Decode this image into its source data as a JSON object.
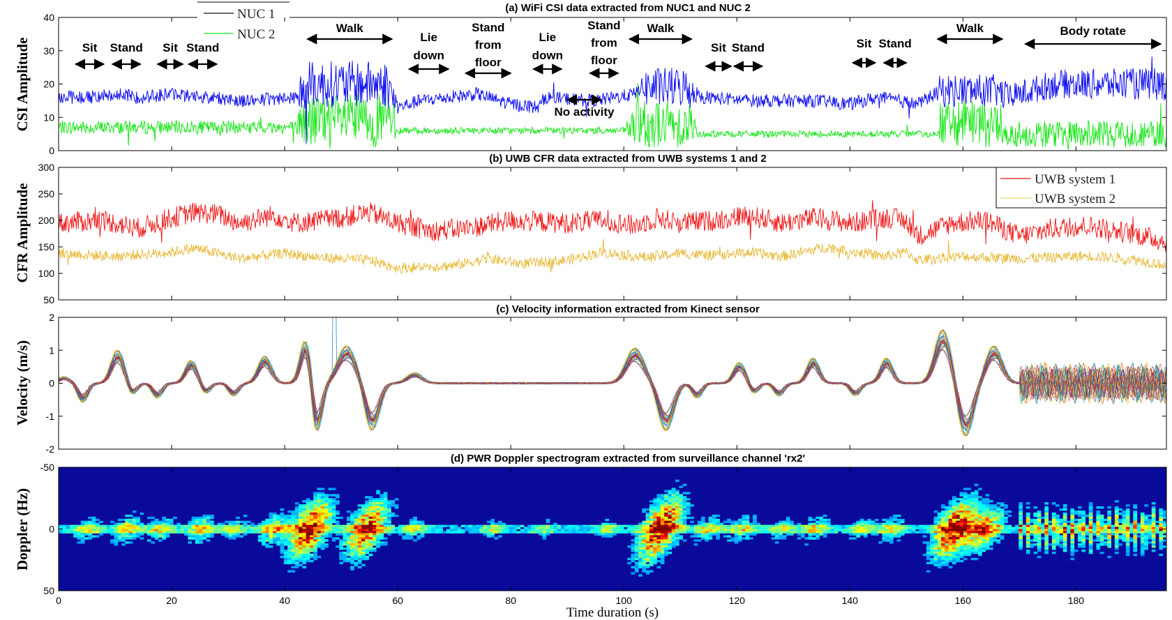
{
  "xaxis": {
    "label": "Time duration (s)",
    "range": [
      0,
      196
    ],
    "ticks": [
      0,
      20,
      40,
      60,
      80,
      100,
      120,
      140,
      160,
      180
    ]
  },
  "colors": {
    "nuc1": "#1010ee",
    "nuc2": "#19e619",
    "uwb1": "#ee1111",
    "uwb2": "#e6b62e",
    "arrow": "#000000"
  },
  "chart_data": [
    {
      "type": "line",
      "panel": "a",
      "title": "(a) WiFi CSI data extracted from NUC1 and NUC 2",
      "ylabel": "CSI Amplitude",
      "ylim": [
        0,
        40
      ],
      "yticks": [
        0,
        10,
        20,
        30,
        40
      ],
      "legend": {
        "position": "top-left",
        "entries": [
          "NUC 1",
          "NUC 2"
        ]
      },
      "series": [
        {
          "name": "NUC 1",
          "color_key": "nuc1",
          "base": [
            [
              0,
              16
            ],
            [
              5,
              16
            ],
            [
              10,
              17
            ],
            [
              14,
              16
            ],
            [
              20,
              17
            ],
            [
              26,
              16
            ],
            [
              33,
              15
            ],
            [
              42,
              16
            ],
            [
              44,
              20
            ],
            [
              58,
              20
            ],
            [
              60,
              13
            ],
            [
              64,
              15
            ],
            [
              69,
              16
            ],
            [
              74,
              17
            ],
            [
              80,
              14
            ],
            [
              85,
              13
            ],
            [
              86,
              16
            ],
            [
              95,
              15
            ],
            [
              102,
              17
            ],
            [
              103,
              19
            ],
            [
              111,
              19
            ],
            [
              114,
              16
            ],
            [
              123,
              15
            ],
            [
              134,
              15
            ],
            [
              140,
              14
            ],
            [
              145,
              16
            ],
            [
              152,
              14
            ],
            [
              156,
              18
            ],
            [
              166,
              18
            ],
            [
              168,
              16
            ],
            [
              176,
              20
            ],
            [
              196,
              20
            ]
          ],
          "noise": [
            [
              0,
              2
            ],
            [
              42,
              2
            ],
            [
              43,
              7
            ],
            [
              59,
              7
            ],
            [
              60,
              2
            ],
            [
              103,
              2
            ],
            [
              104,
              6
            ],
            [
              112,
              6
            ],
            [
              113,
              2
            ],
            [
              155,
              2
            ],
            [
              156,
              5
            ],
            [
              167,
              5
            ],
            [
              168,
              4
            ],
            [
              196,
              5
            ]
          ]
        },
        {
          "name": "NUC 2",
          "color_key": "nuc2",
          "base": [
            [
              0,
              7
            ],
            [
              42,
              7
            ],
            [
              43,
              9
            ],
            [
              59,
              9
            ],
            [
              60,
              6
            ],
            [
              100,
              6
            ],
            [
              103,
              8
            ],
            [
              112,
              8
            ],
            [
              113,
              5
            ],
            [
              155,
              5
            ],
            [
              156,
              8
            ],
            [
              167,
              8
            ],
            [
              168,
              5
            ],
            [
              196,
              5
            ]
          ],
          "noise": [
            [
              0,
              2
            ],
            [
              42,
              2
            ],
            [
              43,
              8
            ],
            [
              59,
              8
            ],
            [
              60,
              1
            ],
            [
              100,
              1
            ],
            [
              102,
              7
            ],
            [
              112,
              7
            ],
            [
              113,
              1
            ],
            [
              155,
              1
            ],
            [
              156,
              7
            ],
            [
              167,
              7
            ],
            [
              168,
              4
            ],
            [
              196,
              4
            ]
          ]
        }
      ],
      "annotations": [
        {
          "text": "Sit",
          "x0": 3,
          "x1": 8
        },
        {
          "text": "Stand",
          "x0": 9.5,
          "x1": 14.5
        },
        {
          "text": "Sit",
          "x0": 17.5,
          "x1": 22
        },
        {
          "text": "Stand",
          "x0": 23,
          "x1": 28
        },
        {
          "text": "Walk",
          "x0": 44,
          "x1": 59
        },
        {
          "text": "Lie down",
          "x0": 62,
          "x1": 69
        },
        {
          "text": "Stand from floor",
          "x0": 72,
          "x1": 80
        },
        {
          "text": "Lie down",
          "x0": 84,
          "x1": 89
        },
        {
          "text": "Stand from floor",
          "x0": 94,
          "x1": 99
        },
        {
          "text": "No activity",
          "x0": 90,
          "x1": 96
        },
        {
          "text": "Walk",
          "x0": 101,
          "x1": 112
        },
        {
          "text": "Sit",
          "x0": 114.5,
          "x1": 119
        },
        {
          "text": "Stand",
          "x0": 119.5,
          "x1": 124.5
        },
        {
          "text": "Sit",
          "x0": 140.5,
          "x1": 144.5
        },
        {
          "text": "Stand",
          "x0": 146,
          "x1": 150
        },
        {
          "text": "Walk",
          "x0": 155.5,
          "x1": 167
        },
        {
          "text": "Body rotate",
          "x0": 171,
          "x1": 195
        }
      ]
    },
    {
      "type": "line",
      "panel": "b",
      "title": "(b) UWB CFR data extracted from UWB systems 1 and 2",
      "ylabel": "CFR Amplitude",
      "ylim": [
        50,
        300
      ],
      "yticks": [
        50,
        100,
        150,
        200,
        250,
        300
      ],
      "legend": {
        "position": "top-right",
        "entries": [
          "UWB system 1",
          "UWB system 2"
        ]
      },
      "series": [
        {
          "name": "UWB system 1",
          "color_key": "uwb1",
          "base": [
            [
              0,
              195
            ],
            [
              8,
              200
            ],
            [
              14,
              185
            ],
            [
              20,
              205
            ],
            [
              24,
              215
            ],
            [
              28,
              212
            ],
            [
              32,
              195
            ],
            [
              38,
              210
            ],
            [
              42,
              195
            ],
            [
              50,
              205
            ],
            [
              55,
              215
            ],
            [
              60,
              195
            ],
            [
              66,
              180
            ],
            [
              72,
              185
            ],
            [
              80,
              200
            ],
            [
              90,
              195
            ],
            [
              96,
              200
            ],
            [
              102,
              190
            ],
            [
              106,
              205
            ],
            [
              110,
              195
            ],
            [
              116,
              200
            ],
            [
              122,
              210
            ],
            [
              128,
              195
            ],
            [
              134,
              205
            ],
            [
              140,
              195
            ],
            [
              147,
              205
            ],
            [
              150,
              200
            ],
            [
              152,
              170
            ],
            [
              158,
              195
            ],
            [
              164,
              200
            ],
            [
              170,
              170
            ],
            [
              176,
              185
            ],
            [
              182,
              190
            ],
            [
              190,
              175
            ],
            [
              196,
              160
            ]
          ],
          "noise": [
            [
              0,
              20
            ],
            [
              196,
              20
            ]
          ]
        },
        {
          "name": "UWB system 2",
          "color_key": "uwb2",
          "base": [
            [
              0,
              138
            ],
            [
              10,
              132
            ],
            [
              20,
              140
            ],
            [
              24,
              148
            ],
            [
              32,
              128
            ],
            [
              40,
              138
            ],
            [
              46,
              130
            ],
            [
              55,
              125
            ],
            [
              60,
              110
            ],
            [
              70,
              115
            ],
            [
              76,
              128
            ],
            [
              82,
              118
            ],
            [
              90,
              125
            ],
            [
              96,
              140
            ],
            [
              104,
              130
            ],
            [
              110,
              138
            ],
            [
              116,
              133
            ],
            [
              122,
              140
            ],
            [
              128,
              132
            ],
            [
              136,
              150
            ],
            [
              140,
              142
            ],
            [
              146,
              132
            ],
            [
              150,
              140
            ],
            [
              152,
              125
            ],
            [
              160,
              132
            ],
            [
              170,
              128
            ],
            [
              182,
              133
            ],
            [
              190,
              127
            ],
            [
              196,
              115
            ]
          ],
          "noise": [
            [
              0,
              10
            ],
            [
              196,
              10
            ]
          ]
        }
      ]
    },
    {
      "type": "line",
      "panel": "c",
      "title": "(c) Velocity information extracted from Kinect sensor",
      "ylabel": "Velocity (m/s)",
      "ylim": [
        -2,
        2
      ],
      "yticks": [
        -2,
        -1,
        0,
        1,
        2
      ],
      "series_count": 25,
      "events": [
        {
          "t": 1,
          "a": 0.15,
          "w": 1.2
        },
        {
          "t": 4.3,
          "a": -0.45,
          "w": 1
        },
        {
          "t": 10.5,
          "a": 0.8,
          "w": 1.3
        },
        {
          "t": 13,
          "a": -0.3,
          "w": 1
        },
        {
          "t": 17.5,
          "a": -0.35,
          "w": 1
        },
        {
          "t": 23.5,
          "a": 0.55,
          "w": 1.2
        },
        {
          "t": 26,
          "a": -0.25,
          "w": 1
        },
        {
          "t": 31,
          "a": -0.3,
          "w": 1
        },
        {
          "t": 36.5,
          "a": 0.65,
          "w": 1.3
        },
        {
          "t": 44,
          "a": 1.3,
          "w": 1.2
        },
        {
          "t": 45.5,
          "a": -1.5,
          "w": 1.1
        },
        {
          "t": 51,
          "a": 0.9,
          "w": 1.8
        },
        {
          "t": 55.5,
          "a": -1.15,
          "w": 1.4
        },
        {
          "t": 63,
          "a": 0.25,
          "w": 1.5
        },
        {
          "t": 102,
          "a": 0.85,
          "w": 1.8
        },
        {
          "t": 107.5,
          "a": -1.15,
          "w": 1.5
        },
        {
          "t": 113,
          "a": -0.35,
          "w": 1
        },
        {
          "t": 120.5,
          "a": 0.5,
          "w": 1.2
        },
        {
          "t": 123,
          "a": -0.25,
          "w": 1
        },
        {
          "t": 127.5,
          "a": -0.3,
          "w": 1
        },
        {
          "t": 133.5,
          "a": 0.6,
          "w": 1.2
        },
        {
          "t": 141,
          "a": -0.3,
          "w": 1
        },
        {
          "t": 146.5,
          "a": 0.6,
          "w": 1.2
        },
        {
          "t": 156.5,
          "a": 1.3,
          "w": 1.6
        },
        {
          "t": 160.5,
          "a": -1.3,
          "w": 1.5
        },
        {
          "t": 165.5,
          "a": 0.9,
          "w": 1.6
        }
      ],
      "rotate_segment": [
        170,
        196
      ]
    },
    {
      "type": "heatmap",
      "panel": "d",
      "title": "(d) PWR Doppler spectrogram extracted from surveillance channel 'rx2'",
      "ylabel": "Doppler (Hz)",
      "ylim": [
        -50,
        50
      ],
      "yticks": [
        -50,
        0,
        50
      ],
      "colormap": "jet",
      "blobs": [
        {
          "t": 5,
          "a": 0.4
        },
        {
          "t": 12,
          "a": 0.45
        },
        {
          "t": 18,
          "a": 0.4
        },
        {
          "t": 25,
          "a": 0.45
        },
        {
          "t": 31,
          "a": 0.35
        },
        {
          "t": 38,
          "a": 0.5
        },
        {
          "t": 44.5,
          "a": 0.95
        },
        {
          "t": 54.5,
          "a": 0.9
        },
        {
          "t": 63,
          "a": 0.35
        },
        {
          "t": 77,
          "a": 0.3
        },
        {
          "t": 86,
          "a": 0.25
        },
        {
          "t": 97,
          "a": 0.3
        },
        {
          "t": 106.5,
          "a": 1.0
        },
        {
          "t": 115,
          "a": 0.4
        },
        {
          "t": 121,
          "a": 0.4
        },
        {
          "t": 128,
          "a": 0.35
        },
        {
          "t": 134,
          "a": 0.4
        },
        {
          "t": 142,
          "a": 0.35
        },
        {
          "t": 147.5,
          "a": 0.4
        },
        {
          "t": 158.5,
          "a": 0.95
        },
        {
          "t": 164,
          "a": 0.7
        }
      ],
      "rotate_segment": [
        170,
        196
      ]
    }
  ]
}
